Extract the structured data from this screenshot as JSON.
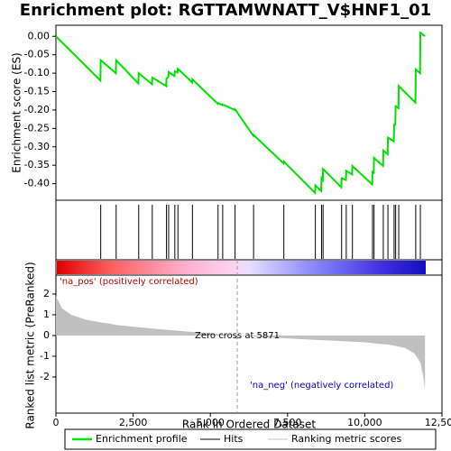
{
  "chart_data": [
    {
      "type": "line",
      "title": "Enrichment plot: RGTTAMWNATT_V$HNF1_01",
      "ylabel": "Enrichment score (ES)",
      "color": "#00e000",
      "xlim": [
        0,
        12500
      ],
      "ylim": [
        -0.445,
        0.03
      ],
      "yticks": [
        {
          "value": 0,
          "label": "0.00"
        },
        {
          "value": -0.05,
          "label": "-0.05"
        },
        {
          "value": -0.1,
          "label": "-0.10"
        },
        {
          "value": -0.15,
          "label": "-0.15"
        },
        {
          "value": -0.2,
          "label": "-0.20"
        },
        {
          "value": -0.25,
          "label": "-0.25"
        },
        {
          "value": -0.3,
          "label": "-0.30"
        },
        {
          "value": -0.35,
          "label": "-0.35"
        },
        {
          "value": -0.4,
          "label": "-0.40"
        }
      ],
      "x": [
        0,
        1440,
        1450,
        1940,
        1950,
        2670,
        2680,
        3110,
        3120,
        3570,
        3580,
        3640,
        3650,
        3840,
        3850,
        3940,
        3950,
        4410,
        4420,
        5240,
        5250,
        5390,
        5400,
        5790,
        5800,
        6390,
        6400,
        7370,
        7380,
        8390,
        8400,
        8590,
        8600,
        8640,
        8650,
        9240,
        9250,
        9390,
        9400,
        9590,
        9600,
        10240,
        10250,
        10290,
        10300,
        10590,
        10600,
        10740,
        10750,
        10940,
        10950,
        10990,
        11000,
        11090,
        11100,
        11640,
        11650,
        11790,
        11800,
        11950
      ],
      "values": [
        0,
        -0.12,
        -0.065,
        -0.1,
        -0.065,
        -0.128,
        -0.1,
        -0.13,
        -0.112,
        -0.135,
        -0.115,
        -0.11,
        -0.097,
        -0.108,
        -0.095,
        -0.098,
        -0.088,
        -0.125,
        -0.117,
        -0.183,
        -0.181,
        -0.187,
        -0.185,
        -0.2,
        -0.198,
        -0.27,
        -0.268,
        -0.345,
        -0.34,
        -0.425,
        -0.405,
        -0.42,
        -0.385,
        -0.39,
        -0.36,
        -0.41,
        -0.385,
        -0.39,
        -0.365,
        -0.375,
        -0.352,
        -0.402,
        -0.368,
        -0.37,
        -0.33,
        -0.352,
        -0.31,
        -0.32,
        -0.275,
        -0.285,
        -0.24,
        -0.24,
        -0.19,
        -0.195,
        -0.135,
        -0.18,
        -0.09,
        -0.1,
        0.01,
        0
      ]
    },
    {
      "type": "hits",
      "color": "#000000",
      "xlim": [
        0,
        12500
      ],
      "x": [
        1450,
        1950,
        2680,
        3120,
        3580,
        3650,
        3850,
        3950,
        4420,
        5250,
        5400,
        5800,
        6400,
        7380,
        8400,
        8600,
        8650,
        9250,
        9400,
        9600,
        10250,
        10300,
        10600,
        10750,
        10950,
        11000,
        11100,
        11650,
        11800
      ]
    },
    {
      "type": "area",
      "ylabel": "Ranked list metric (PreRanked)",
      "xlabel": "Rank in Ordered Dataset",
      "color": "#c0c0c0",
      "xlim": [
        0,
        12500
      ],
      "ylim": [
        -3.74,
        2.91
      ],
      "yticks": [
        2,
        1,
        0,
        -1,
        -2
      ],
      "xticks": [
        0,
        {
          "value": 2500,
          "label": "2,500"
        },
        {
          "value": 5000,
          "label": "5,000"
        },
        {
          "value": 7500,
          "label": "7,500"
        },
        {
          "value": 10000,
          "label": "10,000"
        },
        {
          "value": 12500,
          "label": "12,500"
        }
      ],
      "zero_cross": 5871,
      "zero_cross_label": "Zero cross at 5871",
      "pos_label": "'na_pos' (positively correlated)",
      "neg_label": "'na_neg' (negatively correlated)",
      "x": [
        0,
        200,
        500,
        1000,
        2000,
        3000,
        4000,
        5000,
        5871,
        7000,
        8000,
        9000,
        10000,
        10800,
        11300,
        11600,
        11800,
        11900,
        11950
      ],
      "values": [
        1.9,
        1.3,
        1.0,
        0.75,
        0.5,
        0.35,
        0.22,
        0.1,
        0,
        -0.1,
        -0.18,
        -0.25,
        -0.33,
        -0.45,
        -0.6,
        -0.85,
        -1.3,
        -2,
        -2.6
      ]
    }
  ],
  "legend": [
    "Enrichment profile",
    "Hits",
    "Ranking metric scores"
  ]
}
